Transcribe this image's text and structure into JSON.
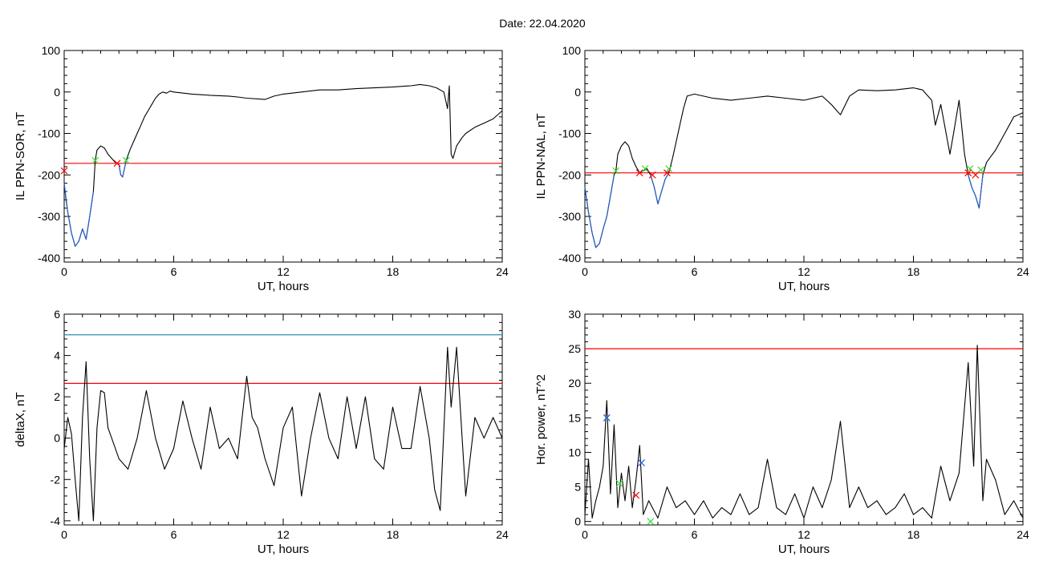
{
  "date_label": "Date:  22.04.2020",
  "colors": {
    "black": "#000000",
    "red": "#ff0000",
    "blue": "#1f5fd0",
    "green": "#33dd33",
    "cyan": "#2a8fb0"
  },
  "chart_data": [
    {
      "type": "line",
      "ylabel": "IL PPN-SOR, nT",
      "xlabel": "UT, hours",
      "xlim": [
        0,
        24
      ],
      "ylim": [
        -410,
        100
      ],
      "xticks": [
        0,
        6,
        12,
        18,
        24
      ],
      "yticks": [
        -400,
        -300,
        -200,
        -100,
        0,
        100
      ],
      "threshold": {
        "y": -172,
        "color": "#ff0000"
      },
      "series": [
        {
          "color": "#000000",
          "x": [
            0,
            0.1,
            0.2,
            0.4,
            0.6,
            0.8,
            1.0,
            1.2,
            1.4,
            1.6,
            1.7,
            1.8,
            2.0,
            2.2,
            2.4,
            2.6,
            2.8,
            3.0,
            3.1,
            3.2,
            3.3,
            3.4,
            3.6,
            3.8,
            4.0,
            4.2,
            4.4,
            4.6,
            4.8,
            5.0,
            5.2,
            5.4,
            5.6,
            5.8,
            6.0,
            7,
            8,
            9,
            9.5,
            10,
            11,
            11.5,
            12,
            13,
            14,
            15,
            16,
            17,
            18,
            19,
            19.5,
            20,
            20.4,
            20.8,
            21.0,
            21.1,
            21.2,
            21.3,
            21.5,
            21.8,
            22,
            22.5,
            23,
            23.5,
            24
          ],
          "y": [
            -220,
            -260,
            -290,
            -340,
            -372,
            -360,
            -330,
            -355,
            -300,
            -240,
            -165,
            -140,
            -130,
            -135,
            -150,
            -160,
            -170,
            -175,
            -200,
            -205,
            -185,
            -165,
            -140,
            -120,
            -100,
            -80,
            -60,
            -45,
            -30,
            -15,
            -5,
            0,
            -3,
            2,
            0,
            -5,
            -8,
            -10,
            -12,
            -15,
            -18,
            -10,
            -5,
            0,
            5,
            5,
            8,
            10,
            12,
            15,
            18,
            15,
            10,
            0,
            -40,
            15,
            -150,
            -160,
            -130,
            -110,
            -100,
            -85,
            -75,
            -65,
            -45
          ]
        },
        {
          "color": "#1f5fd0",
          "x": [
            0,
            0.2,
            0.4,
            0.6,
            0.8,
            1.0,
            1.2,
            1.4,
            1.6
          ],
          "y": [
            -220,
            -290,
            -340,
            -372,
            -360,
            -330,
            -355,
            -300,
            -240
          ]
        },
        {
          "color": "#1f5fd0",
          "x": [
            2.8,
            3.0,
            3.1,
            3.2,
            3.3,
            3.4
          ],
          "y": [
            -170,
            -175,
            -200,
            -205,
            -185,
            -165
          ]
        }
      ],
      "markers": [
        {
          "x": 1.7,
          "y": -165,
          "color": "#33dd33"
        },
        {
          "x": 3.4,
          "y": -165,
          "color": "#33dd33"
        },
        {
          "x": 0.0,
          "y": -190,
          "color": "#ff0000"
        },
        {
          "x": 2.9,
          "y": -172,
          "color": "#ff0000"
        }
      ]
    },
    {
      "type": "line",
      "ylabel": "IL PPN-NAL, nT",
      "xlabel": "UT, hours",
      "xlim": [
        0,
        24
      ],
      "ylim": [
        -410,
        100
      ],
      "xticks": [
        0,
        6,
        12,
        18,
        24
      ],
      "yticks": [
        -400,
        -300,
        -200,
        -100,
        0,
        100
      ],
      "threshold": {
        "y": -195,
        "color": "#ff0000"
      },
      "series": [
        {
          "color": "#000000",
          "x": [
            0,
            0.2,
            0.4,
            0.6,
            0.8,
            1.0,
            1.2,
            1.4,
            1.6,
            1.7,
            1.8,
            2.0,
            2.2,
            2.4,
            2.6,
            2.8,
            3.0,
            3.2,
            3.4,
            3.6,
            3.8,
            4.0,
            4.2,
            4.4,
            4.6,
            4.8,
            5.0,
            5.2,
            5.4,
            5.6,
            6,
            7,
            8,
            9,
            10,
            11,
            12,
            13,
            13.5,
            14,
            14.5,
            15,
            16,
            17,
            18,
            18.5,
            19,
            19.2,
            19.5,
            20,
            20.2,
            20.5,
            20.8,
            21.0,
            21.2,
            21.4,
            21.6,
            21.8,
            22,
            22.5,
            23,
            23.5,
            24
          ],
          "y": [
            -230,
            -290,
            -340,
            -375,
            -365,
            -330,
            -300,
            -250,
            -200,
            -190,
            -150,
            -130,
            -120,
            -130,
            -160,
            -180,
            -195,
            -190,
            -185,
            -200,
            -230,
            -270,
            -240,
            -210,
            -195,
            -160,
            -120,
            -80,
            -40,
            -10,
            -5,
            -15,
            -20,
            -15,
            -10,
            -15,
            -20,
            -10,
            -30,
            -55,
            -10,
            5,
            3,
            5,
            10,
            5,
            -20,
            -80,
            -30,
            -150,
            -100,
            -20,
            -150,
            -200,
            -230,
            -250,
            -280,
            -200,
            -170,
            -140,
            -100,
            -60,
            -50
          ]
        },
        {
          "color": "#1f5fd0",
          "x": [
            0,
            0.2,
            0.4,
            0.6,
            0.8,
            1.0,
            1.2,
            1.4,
            1.6
          ],
          "y": [
            -230,
            -290,
            -340,
            -375,
            -365,
            -330,
            -300,
            -250,
            -200
          ]
        },
        {
          "color": "#1f5fd0",
          "x": [
            3.6,
            3.8,
            4.0,
            4.2,
            4.4,
            4.6
          ],
          "y": [
            -200,
            -230,
            -270,
            -240,
            -210,
            -195
          ]
        },
        {
          "color": "#1f5fd0",
          "x": [
            21.0,
            21.2,
            21.4,
            21.6,
            21.8
          ],
          "y": [
            -200,
            -230,
            -250,
            -280,
            -200
          ]
        }
      ],
      "markers": [
        {
          "x": 1.7,
          "y": -190,
          "color": "#33dd33"
        },
        {
          "x": 3.3,
          "y": -185,
          "color": "#33dd33"
        },
        {
          "x": 4.6,
          "y": -185,
          "color": "#33dd33"
        },
        {
          "x": 21.1,
          "y": -185,
          "color": "#33dd33"
        },
        {
          "x": 21.7,
          "y": -188,
          "color": "#33dd33"
        },
        {
          "x": 3.0,
          "y": -195,
          "color": "#ff0000"
        },
        {
          "x": 3.7,
          "y": -200,
          "color": "#ff0000"
        },
        {
          "x": 4.5,
          "y": -195,
          "color": "#ff0000"
        },
        {
          "x": 21.0,
          "y": -195,
          "color": "#ff0000"
        },
        {
          "x": 21.4,
          "y": -200,
          "color": "#ff0000"
        }
      ]
    },
    {
      "type": "line",
      "ylabel": "deltaX, nT",
      "xlabel": "UT, hours",
      "xlim": [
        0,
        24
      ],
      "ylim": [
        -4.2,
        6
      ],
      "xticks": [
        0,
        6,
        12,
        18,
        24
      ],
      "yticks": [
        -4,
        -2,
        0,
        2,
        4,
        6
      ],
      "threshold": {
        "y": 2.65,
        "color": "#ff0000"
      },
      "threshold2": {
        "y": 5.0,
        "color": "#2a8fb0"
      },
      "series": [
        {
          "color": "#000000",
          "x": [
            0,
            0.2,
            0.4,
            0.6,
            0.8,
            1.0,
            1.2,
            1.4,
            1.6,
            1.8,
            2.0,
            2.2,
            2.4,
            2.6,
            3.0,
            3.5,
            4.0,
            4.5,
            5.0,
            5.5,
            6.0,
            6.5,
            7.0,
            7.5,
            8.0,
            8.5,
            9.0,
            9.5,
            10.0,
            10.3,
            10.6,
            11.0,
            11.5,
            12.0,
            12.5,
            13.0,
            13.5,
            14.0,
            14.5,
            15.0,
            15.5,
            16.0,
            16.5,
            17.0,
            17.5,
            18.0,
            18.5,
            19.0,
            19.5,
            20.0,
            20.3,
            20.6,
            21.0,
            21.2,
            21.5,
            21.8,
            22.0,
            22.5,
            23.0,
            23.5,
            24
          ],
          "y": [
            -0.5,
            1.0,
            0.2,
            -2.0,
            -4.0,
            1.0,
            3.7,
            -1.0,
            -4.0,
            0.5,
            2.3,
            2.2,
            0.5,
            0.0,
            -1.0,
            -1.5,
            0.0,
            2.3,
            0.0,
            -1.5,
            -0.5,
            1.8,
            0.0,
            -1.5,
            1.5,
            -0.5,
            0.0,
            -1.0,
            3.0,
            1.0,
            0.5,
            -1.0,
            -2.3,
            0.5,
            1.5,
            -2.8,
            0.0,
            2.2,
            0.0,
            -1.0,
            2.0,
            -0.5,
            2.0,
            -1.0,
            -1.5,
            1.5,
            -0.5,
            -0.5,
            2.5,
            0.0,
            -2.5,
            -3.5,
            4.4,
            1.5,
            4.4,
            0.0,
            -2.8,
            1.0,
            0.0,
            1.0,
            0.0
          ]
        }
      ],
      "markers": []
    },
    {
      "type": "line",
      "ylabel": "Hor. power, nT^2",
      "xlabel": "UT, hours",
      "xlim": [
        0,
        24
      ],
      "ylim": [
        -0.5,
        30
      ],
      "xticks": [
        0,
        6,
        12,
        18,
        24
      ],
      "yticks": [
        0,
        5,
        10,
        15,
        20,
        25,
        30
      ],
      "threshold": {
        "y": 25,
        "color": "#ff0000"
      },
      "series": [
        {
          "color": "#000000",
          "x": [
            0,
            0.2,
            0.4,
            0.6,
            0.8,
            1.0,
            1.2,
            1.4,
            1.6,
            1.8,
            2.0,
            2.2,
            2.4,
            2.6,
            2.8,
            3.0,
            3.2,
            3.5,
            4.0,
            4.5,
            5.0,
            5.5,
            6.0,
            6.5,
            7.0,
            7.5,
            8.0,
            8.5,
            9.0,
            9.5,
            10.0,
            10.5,
            11.0,
            11.5,
            12.0,
            12.5,
            13.0,
            13.5,
            14.0,
            14.5,
            15.0,
            15.5,
            16.0,
            16.5,
            17.0,
            17.5,
            18.0,
            18.5,
            19.0,
            19.5,
            20.0,
            20.5,
            21.0,
            21.3,
            21.5,
            21.8,
            22.0,
            22.5,
            23.0,
            23.5,
            24
          ],
          "y": [
            1,
            9,
            0.5,
            3,
            5,
            8,
            17.5,
            4,
            14,
            2,
            7,
            3,
            8,
            2,
            6,
            11,
            1,
            3,
            0.5,
            5,
            2,
            3,
            1,
            3,
            0.5,
            2,
            1,
            4,
            1,
            2,
            9,
            2,
            1,
            4,
            0.5,
            5,
            2,
            6,
            14.5,
            2,
            5,
            2,
            3,
            1,
            2,
            4,
            1,
            2,
            0.5,
            8,
            3,
            7,
            23,
            8,
            25.5,
            3,
            9,
            6,
            1,
            3,
            0.5
          ]
        }
      ],
      "markers": [
        {
          "x": 1.2,
          "y": 15,
          "color": "#1f5fd0"
        },
        {
          "x": 3.1,
          "y": 8.5,
          "color": "#1f5fd0"
        },
        {
          "x": 1.9,
          "y": 5.5,
          "color": "#33dd33"
        },
        {
          "x": 3.6,
          "y": 0,
          "color": "#33dd33"
        },
        {
          "x": 2.8,
          "y": 3.8,
          "color": "#ff0000"
        }
      ]
    }
  ]
}
